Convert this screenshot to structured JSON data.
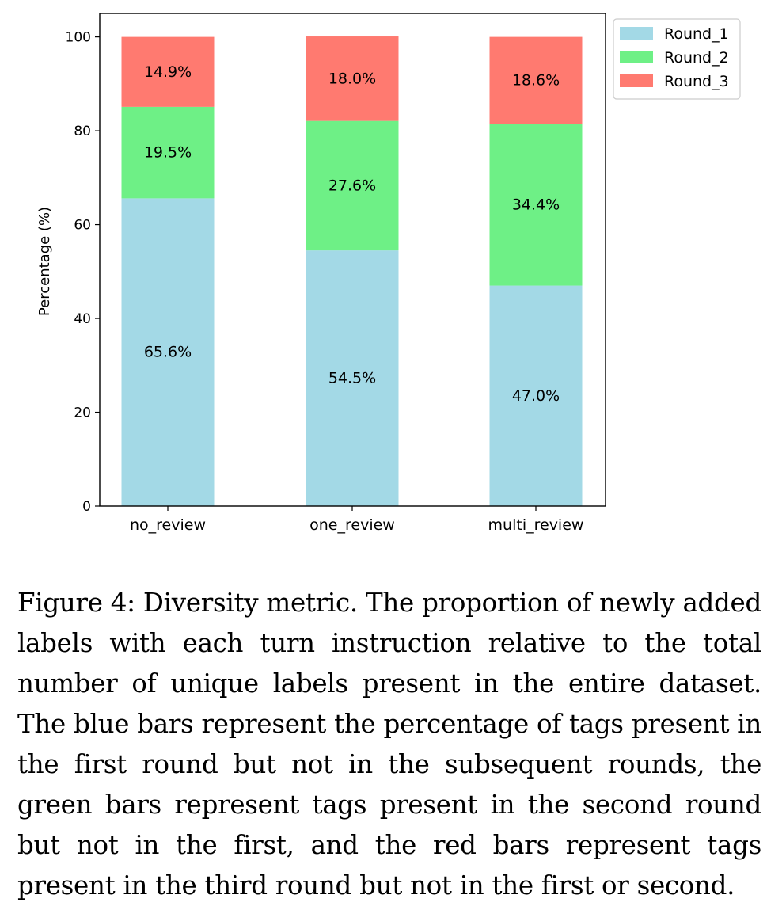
{
  "chart_data": {
    "type": "bar",
    "stacked": true,
    "categories": [
      "no_review",
      "one_review",
      "multi_review"
    ],
    "series": [
      {
        "name": "Round_1",
        "color": "#a3d9e6",
        "values": [
          65.6,
          54.5,
          47.0
        ],
        "labels": [
          "65.6%",
          "54.5%",
          "47.0%"
        ]
      },
      {
        "name": "Round_2",
        "color": "#6ef086",
        "values": [
          19.5,
          27.6,
          34.4
        ],
        "labels": [
          "19.5%",
          "27.6%",
          "34.4%"
        ]
      },
      {
        "name": "Round_3",
        "color": "#ff7a70",
        "values": [
          14.9,
          18.0,
          18.6
        ],
        "labels": [
          "14.9%",
          "18.0%",
          "18.6%"
        ]
      }
    ],
    "title": "",
    "xlabel": "",
    "ylabel": "Percentage (%)",
    "ylim": [
      0,
      105
    ],
    "yticks": [
      "0",
      "20",
      "40",
      "60",
      "80",
      "100"
    ],
    "grid": false,
    "legend_position": "top-right outside"
  },
  "caption": {
    "text": "Figure 4: Diversity metric. The proportion of newly added labels with each turn instruction relative to the total number of unique labels present in the entire dataset. The blue bars represent the percentage of tags present in the first round but not in the subsequent rounds, the green bars represent tags present in the second round but not in the first, and the red bars represent tags present in the third round but not in the first or second."
  }
}
